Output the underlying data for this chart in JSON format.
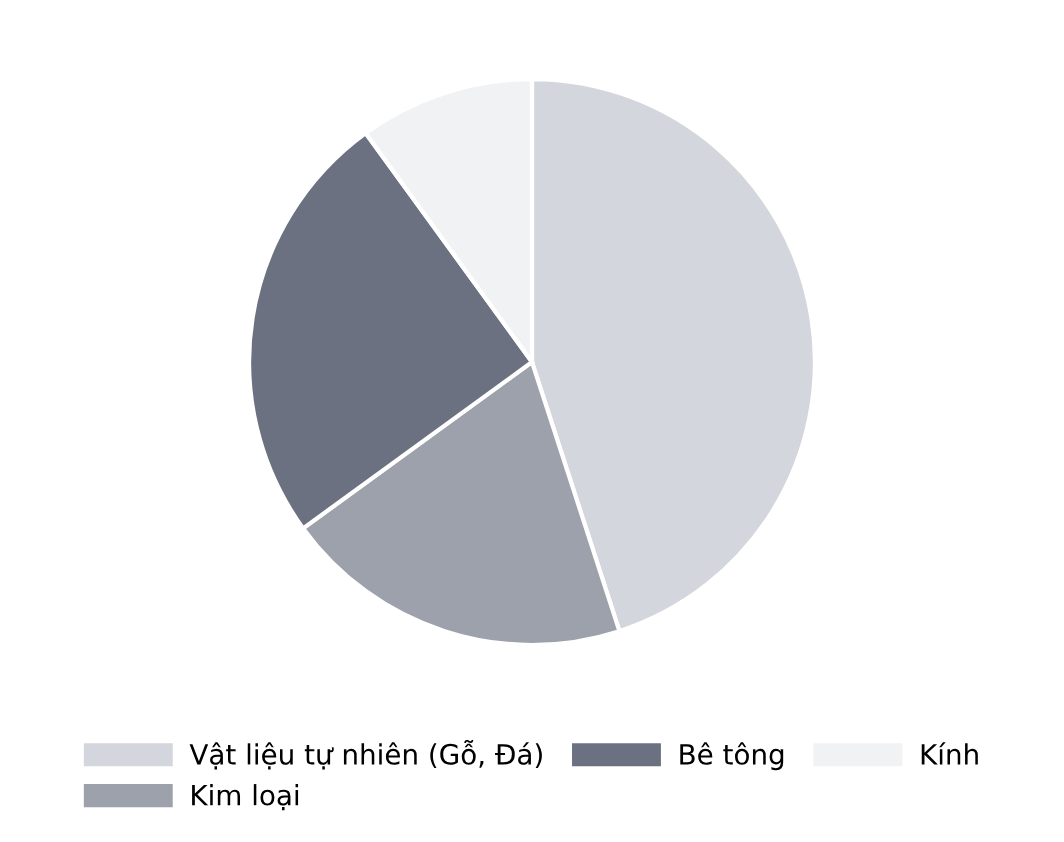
{
  "chart_data": {
    "type": "pie",
    "categories": [
      "Vật liệu tự nhiên (Gỗ, Đá)",
      "Kim loại",
      "Bê tông",
      "Kính"
    ],
    "values": [
      45,
      20,
      25,
      10
    ],
    "colors": [
      "#d3d6dc",
      "#9ca1ab",
      "#6b7180",
      "#f1f2f4"
    ],
    "legend": "bottom"
  }
}
